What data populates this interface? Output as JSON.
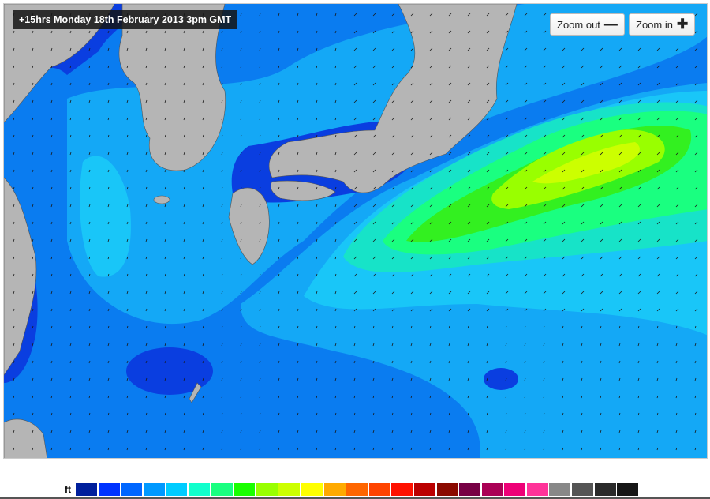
{
  "map": {
    "title": "+15hrs Monday 18th February 2013 3pm GMT",
    "zoom_out_label": "Zoom out",
    "zoom_in_label": "Zoom in",
    "colors": {
      "deep": "#0a3ee0",
      "mid": "#0a7cf0",
      "light": "#14a8f6",
      "cyan": "#19c6f8",
      "teal": "#17e3c8",
      "green": "#1aff80",
      "lime": "#66ff00",
      "yellow": "#ccff00",
      "land": "#b5b5b5"
    }
  },
  "legend": {
    "unit": "ft",
    "colors": [
      "#001f9c",
      "#0033ff",
      "#0066ff",
      "#0099ff",
      "#00ccff",
      "#11ffcc",
      "#1aff80",
      "#1aff00",
      "#99ff00",
      "#ccff00",
      "#ffff00",
      "#ffaa00",
      "#ff6600",
      "#ff4400",
      "#ff1100",
      "#bb0000",
      "#8b0a00",
      "#770044",
      "#aa0055",
      "#ee0077",
      "#ff3399",
      "#888888",
      "#555555",
      "#2a2a2a",
      "#161616"
    ]
  }
}
